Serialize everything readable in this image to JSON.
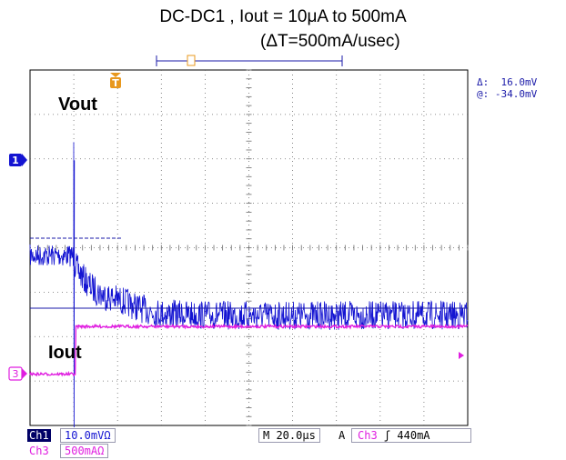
{
  "title": {
    "line1": "DC-DC1 , Iout = 10μA to 500mA",
    "line2": "(ΔT=500mA/usec)"
  },
  "trigger_marker": "T",
  "cursor_readout": {
    "delta_label": "Δ:",
    "delta_value": "16.0mV",
    "at_label": "@:",
    "at_value": "-34.0mV"
  },
  "channels": {
    "ch1": {
      "marker": "1",
      "label": "Vout",
      "color": "#1414d2"
    },
    "ch3": {
      "marker": "3",
      "label": "Iout",
      "color": "#e01ee0"
    }
  },
  "status_bar": {
    "ch1_tag": "Ch1",
    "ch1_scale": "10.0mVΩ",
    "ch3_tag": "Ch3",
    "ch3_scale": "500mAΩ",
    "timebase": "M 20.0μs",
    "acq_mode": "A",
    "trig_source": "Ch3",
    "trig_slope": "ʃ",
    "trig_level": "440mA"
  },
  "chart_data": {
    "type": "line",
    "x_unit": "μs",
    "time_per_division": 20,
    "x_range": [
      -20,
      180
    ],
    "trigger_time": 0,
    "series": [
      {
        "name": "Vout",
        "unit": "mV",
        "volts_per_division": 10,
        "step_time": 0,
        "pre_level_div": -2.15,
        "post_settle_level_div": -3.5,
        "overshoot_peak_div": 0.4,
        "undershoot_peak_div": -6.6,
        "noise_pp_div": 0.5
      },
      {
        "name": "Iout",
        "unit": "mA",
        "amps_per_division": 500,
        "step_time": 0,
        "low_level_mA": 0.01,
        "high_level_mA": 500,
        "transition_time_us": 1
      }
    ]
  }
}
